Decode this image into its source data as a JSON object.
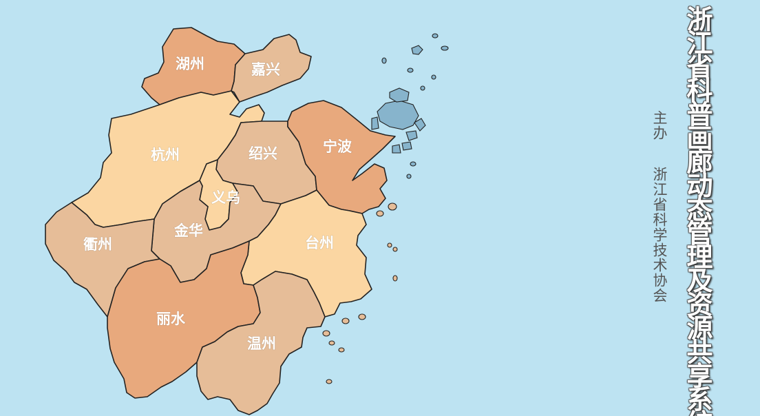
{
  "title": "浙江省科普画廊动态管理及资源共享系统",
  "sponsor": {
    "label": "主办",
    "name": "浙江省科学技术协会"
  },
  "colors": {
    "sea": "#bde3f2",
    "dark": "#e8a97d",
    "medium": "#e6bd98",
    "light": "#fbd6a2",
    "lake": "#87b4cc"
  },
  "regions": [
    {
      "id": "huzhou",
      "label": "湖州",
      "shade": "dark"
    },
    {
      "id": "jiaxing",
      "label": "嘉兴",
      "shade": "medium"
    },
    {
      "id": "hangzhou",
      "label": "杭州",
      "shade": "light"
    },
    {
      "id": "shaoxing",
      "label": "绍兴",
      "shade": "medium"
    },
    {
      "id": "ningbo",
      "label": "宁波",
      "shade": "dark"
    },
    {
      "id": "yiwu",
      "label": "义乌",
      "shade": "light"
    },
    {
      "id": "jinhua",
      "label": "金华",
      "shade": "medium"
    },
    {
      "id": "quzhou",
      "label": "衢州",
      "shade": "medium"
    },
    {
      "id": "taizhou",
      "label": "台州",
      "shade": "light"
    },
    {
      "id": "lishui",
      "label": "丽水",
      "shade": "dark"
    },
    {
      "id": "wenzhou",
      "label": "温州",
      "shade": "medium"
    }
  ]
}
